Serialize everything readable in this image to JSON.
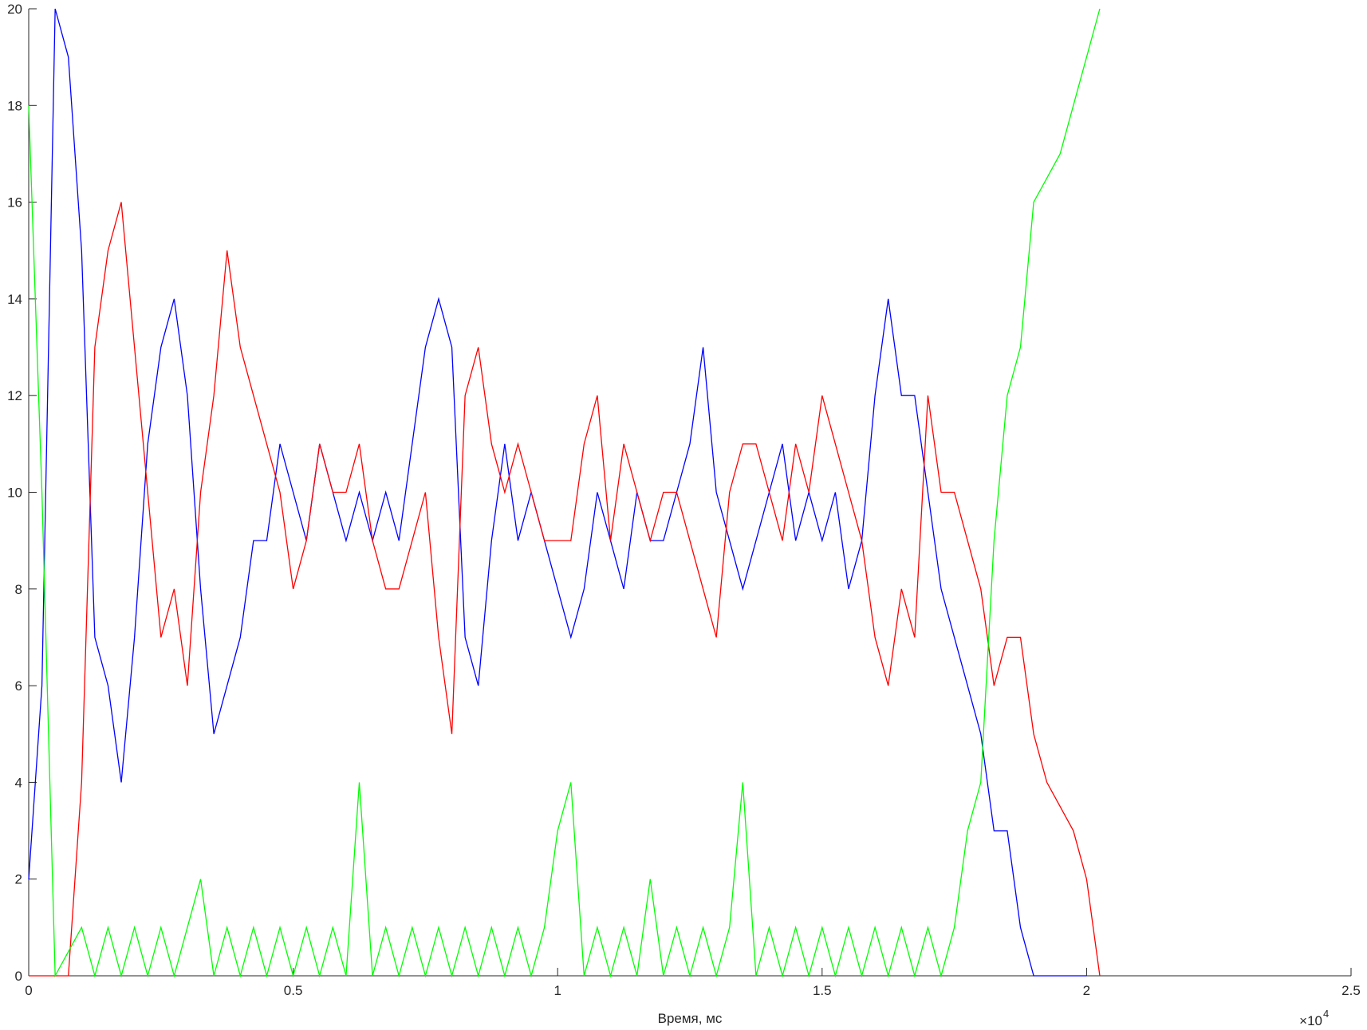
{
  "chart_data": {
    "type": "line",
    "x_label": "Время, мс",
    "x_multiplier": {
      "base": "×10",
      "power": "4"
    },
    "x": [
      0,
      250,
      500,
      750,
      1000,
      1250,
      1500,
      1750,
      2000,
      2250,
      2500,
      2750,
      3000,
      3250,
      3500,
      3750,
      4000,
      4250,
      4500,
      4750,
      5000,
      5250,
      5500,
      5750,
      6000,
      6250,
      6500,
      6750,
      7000,
      7250,
      7500,
      7750,
      8000,
      8250,
      8500,
      8750,
      9000,
      9250,
      9500,
      9750,
      10000,
      10250,
      10500,
      10750,
      11000,
      11250,
      11500,
      11750,
      12000,
      12250,
      12500,
      12750,
      13000,
      13250,
      13500,
      13750,
      14000,
      14250,
      14500,
      14750,
      15000,
      15250,
      15500,
      15750,
      16000,
      16250,
      16500,
      16750,
      17000,
      17250,
      17500,
      17750,
      18000,
      18250,
      18500,
      18750,
      19000,
      19250,
      19500,
      19750,
      20000,
      20250
    ],
    "series": [
      {
        "color": "#0000ff",
        "values": [
          2,
          6,
          20,
          19,
          15,
          7,
          6,
          4,
          7,
          11,
          13,
          14,
          12,
          8,
          5,
          6,
          7,
          9,
          9,
          11,
          10,
          9,
          11,
          10,
          9,
          10,
          9,
          10,
          9,
          11,
          13,
          14,
          13,
          7,
          6,
          9,
          11,
          9,
          10,
          9,
          8,
          7,
          8,
          10,
          9,
          8,
          10,
          9,
          9,
          10,
          11,
          13,
          10,
          9,
          8,
          9,
          10,
          11,
          9,
          10,
          9,
          10,
          8,
          9,
          12,
          14,
          12,
          12,
          10,
          8,
          7,
          6,
          5,
          3,
          3,
          1,
          0,
          0,
          0,
          0,
          0,
          null
        ]
      },
      {
        "color": "#ff0000",
        "values": [
          0,
          0,
          0,
          0,
          4,
          13,
          15,
          16,
          13,
          10,
          7,
          8,
          6,
          10,
          12,
          15,
          13,
          12,
          11,
          10,
          8,
          9,
          11,
          10,
          10,
          11,
          9,
          8,
          8,
          9,
          10,
          7,
          5,
          12,
          13,
          11,
          10,
          11,
          10,
          9,
          9,
          9,
          11,
          12,
          9,
          11,
          10,
          9,
          10,
          10,
          9,
          8,
          7,
          10,
          11,
          11,
          10,
          9,
          11,
          10,
          12,
          11,
          10,
          9,
          7,
          6,
          8,
          7,
          12,
          10,
          10,
          9,
          8,
          6,
          7,
          7,
          5,
          4,
          3.5,
          3,
          2,
          0
        ]
      },
      {
        "color": "#00ff00",
        "values": [
          18,
          10,
          0,
          0.5,
          1,
          0,
          1,
          0,
          1,
          0,
          1,
          0,
          1,
          2,
          0,
          1,
          0,
          1,
          0,
          1,
          0,
          1,
          0,
          1,
          0,
          4,
          0,
          1,
          0,
          1,
          0,
          1,
          0,
          1,
          0,
          1,
          0,
          1,
          0,
          1,
          3,
          4,
          0,
          1,
          0,
          1,
          0,
          2,
          0,
          1,
          0,
          1,
          0,
          1,
          4,
          0,
          1,
          0,
          1,
          0,
          1,
          0,
          1,
          0,
          1,
          0,
          1,
          0,
          1,
          0,
          1,
          3,
          4,
          9,
          12,
          13,
          16,
          16.5,
          17,
          18,
          19,
          20
        ]
      }
    ],
    "xlim": [
      0,
      25000
    ],
    "ylim": [
      0,
      20
    ],
    "xticks": [
      0,
      {
        "value": 5000,
        "label": "0.5"
      },
      {
        "value": 10000,
        "label": "1"
      },
      {
        "value": 15000,
        "label": "1.5"
      },
      {
        "value": 20000,
        "label": "2"
      },
      {
        "value": 25000,
        "label": "2.5"
      }
    ],
    "yticks": [
      0,
      2,
      4,
      6,
      8,
      10,
      12,
      14,
      16,
      18,
      20
    ]
  }
}
